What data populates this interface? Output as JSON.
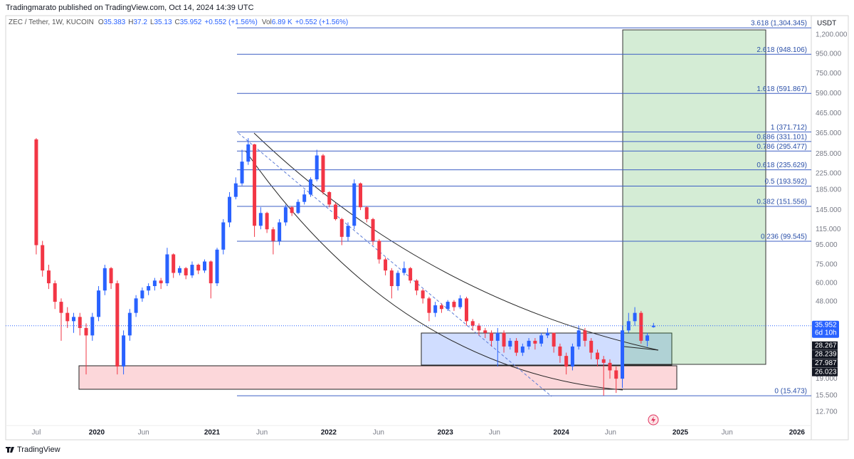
{
  "chart_data": {
    "type": "candlestick",
    "header": "Tradingmarato published on TradingView.com, Oct 14, 2024 14:39 UTC",
    "legend": {
      "symbol": "ZEC / Tether, 1W, KUCOIN",
      "o": "O",
      "h": "H",
      "l": "L",
      "c": "C",
      "change": "+0.552 (+1.56%)",
      "vol": "Vol",
      "volume": "6.89 K",
      "vol_change": "+0.552 (+1.56%)"
    },
    "currency": "USDT",
    "footer": "TradingView",
    "log_scale": true,
    "up_color": "#2962ff",
    "down_color": "#f23645",
    "ylim": [
      10.8,
      1510
    ],
    "yticks": [
      {
        "value": 1200,
        "label": "1,200.000"
      },
      {
        "value": 950,
        "label": "950.000"
      },
      {
        "value": 750,
        "label": "750.000"
      },
      {
        "value": 590,
        "label": "590.000"
      },
      {
        "value": 465,
        "label": "465.000"
      },
      {
        "value": 365,
        "label": "365.000"
      },
      {
        "value": 285,
        "label": "285.000"
      },
      {
        "value": 225,
        "label": "225.000"
      },
      {
        "value": 185,
        "label": "185.000"
      },
      {
        "value": 145,
        "label": "145.000"
      },
      {
        "value": 115,
        "label": "115.000"
      },
      {
        "value": 95,
        "label": "95.000"
      },
      {
        "value": 75,
        "label": "75.000"
      },
      {
        "value": 60,
        "label": "60.000"
      },
      {
        "value": 48,
        "label": "48.000"
      },
      {
        "value": 19,
        "label": "19.000"
      },
      {
        "value": 15.5,
        "label": "15.500"
      },
      {
        "value": 12.7,
        "label": "12.700"
      }
    ],
    "xlim": [
      -4.9,
      124.3
    ],
    "xticks": [
      {
        "value": 0,
        "label": "Jul"
      },
      {
        "value": 9.7,
        "label": "2020"
      },
      {
        "value": 17.2,
        "label": "Jun"
      },
      {
        "value": 28.2,
        "label": "2021"
      },
      {
        "value": 36.2,
        "label": "Jun"
      },
      {
        "value": 46.9,
        "label": "2022"
      },
      {
        "value": 54.9,
        "label": "Jun"
      },
      {
        "value": 65.6,
        "label": "2023"
      },
      {
        "value": 73.5,
        "label": "Jun"
      },
      {
        "value": 84.2,
        "label": "2024"
      },
      {
        "value": 92.1,
        "label": "Jun"
      },
      {
        "value": 103.3,
        "label": "2025"
      },
      {
        "value": 110.8,
        "label": "Jun"
      },
      {
        "value": 122,
        "label": "2026"
      }
    ],
    "open": [
      340,
      95,
      70,
      60,
      48,
      42,
      38,
      40,
      35,
      32,
      40,
      55,
      72,
      60,
      22,
      32,
      42,
      50,
      55,
      58,
      62,
      60,
      85,
      68,
      72,
      66,
      75,
      70,
      78,
      60,
      90,
      125,
      170,
      200,
      260,
      320,
      120,
      140,
      115,
      100,
      125,
      150,
      140,
      160,
      175,
      210,
      280,
      180,
      155,
      130,
      105,
      120,
      200,
      150,
      130,
      100,
      80,
      70,
      58,
      68,
      72,
      62,
      55,
      50,
      42,
      46,
      44,
      48,
      45,
      50,
      38,
      36,
      34,
      33,
      30,
      33,
      28,
      30,
      26,
      28,
      30,
      29,
      32,
      33,
      28,
      25,
      22,
      28,
      34,
      30,
      26,
      24,
      23,
      21,
      19,
      34,
      38,
      42,
      30,
      35.383
    ],
    "high": [
      345,
      100,
      75,
      62,
      50,
      45,
      42,
      42,
      37,
      42,
      58,
      75,
      73,
      62,
      34,
      44,
      52,
      57,
      60,
      64,
      64,
      92,
      86,
      74,
      73,
      78,
      76,
      80,
      79,
      92,
      130,
      180,
      215,
      300,
      345,
      322,
      150,
      142,
      118,
      130,
      155,
      152,
      165,
      185,
      215,
      300,
      285,
      182,
      158,
      132,
      125,
      210,
      202,
      152,
      132,
      102,
      82,
      72,
      70,
      78,
      73,
      63,
      56,
      51,
      48,
      47,
      49,
      49,
      52,
      51,
      39,
      37,
      35,
      34,
      35,
      34,
      31,
      31,
      29,
      31,
      31,
      33,
      35,
      33,
      29,
      26,
      29,
      36,
      35,
      31,
      27,
      25,
      24,
      22,
      36,
      42,
      45,
      43,
      33,
      37.2
    ],
    "low": [
      85,
      65,
      56,
      44,
      30,
      35,
      33,
      32,
      20,
      30,
      38,
      52,
      56,
      20,
      20,
      30,
      40,
      48,
      52,
      55,
      56,
      58,
      64,
      66,
      63,
      64,
      67,
      68,
      50,
      58,
      85,
      118,
      165,
      195,
      250,
      105,
      115,
      110,
      85,
      95,
      120,
      135,
      138,
      155,
      170,
      205,
      175,
      150,
      128,
      95,
      100,
      115,
      145,
      125,
      95,
      76,
      66,
      50,
      55,
      66,
      60,
      52,
      47,
      38,
      40,
      42,
      43,
      43,
      44,
      36,
      34,
      32,
      31,
      28,
      22,
      26,
      27,
      25,
      25,
      27,
      27,
      28,
      31,
      26,
      23,
      20,
      21,
      27,
      28,
      24,
      22,
      15.5,
      19,
      16,
      17,
      33,
      36,
      29,
      28,
      35.13
    ],
    "close": [
      95,
      70,
      60,
      48,
      42,
      38,
      40,
      35,
      32,
      40,
      55,
      72,
      60,
      22,
      32,
      42,
      50,
      55,
      58,
      62,
      60,
      85,
      68,
      72,
      66,
      75,
      70,
      78,
      60,
      90,
      125,
      170,
      200,
      260,
      320,
      120,
      140,
      115,
      100,
      125,
      150,
      140,
      160,
      175,
      210,
      280,
      180,
      155,
      130,
      105,
      120,
      200,
      150,
      130,
      100,
      80,
      70,
      58,
      68,
      72,
      62,
      55,
      50,
      42,
      46,
      44,
      48,
      45,
      50,
      38,
      36,
      34,
      33,
      30,
      33,
      28,
      30,
      26,
      28,
      30,
      29,
      32,
      33,
      28,
      25,
      22,
      28,
      34,
      30,
      26,
      24,
      23,
      21,
      19,
      34,
      38,
      42,
      30,
      32,
      35.952
    ],
    "countdown": "6d 10h",
    "price_labels": [
      28.267,
      28.239,
      27.987,
      26.023
    ],
    "fib_levels": [
      {
        "value": 1304.345,
        "label": "3.618 (1,304.345)"
      },
      {
        "value": 948.106,
        "label": "2.618 (948.106)"
      },
      {
        "value": 591.867,
        "label": "1.618 (591.867)"
      },
      {
        "value": 371.712,
        "label": "1 (371.712)"
      },
      {
        "value": 331.101,
        "label": "0.886 (331.101)"
      },
      {
        "value": 295.477,
        "label": "0.786 (295.477)"
      },
      {
        "value": 235.629,
        "label": "0.618 (235.629)"
      },
      {
        "value": 193.592,
        "label": "0.5 (193.592)"
      },
      {
        "value": 151.556,
        "label": "0.382 (151.556)"
      },
      {
        "value": 99.545,
        "label": "0.236 (99.545)"
      },
      {
        "value": 15.473,
        "label": "0 (15.473)"
      }
    ]
  }
}
